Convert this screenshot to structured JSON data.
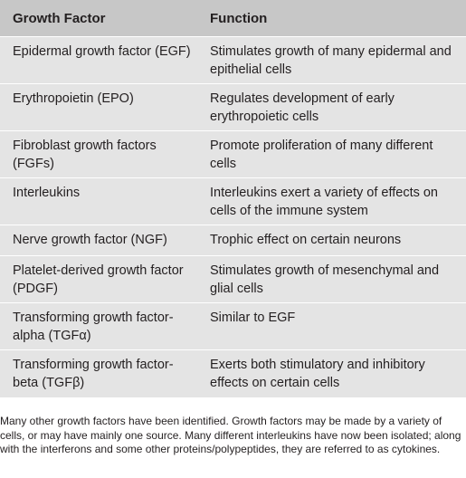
{
  "table": {
    "headers": [
      "Growth Factor",
      "Function"
    ],
    "rows": [
      {
        "factor": "Epidermal growth factor (EGF)",
        "function": "Stimulates growth of many epidermal and epithelial cells"
      },
      {
        "factor": "Erythropoietin (EPO)",
        "function": "Regulates development of early erythropoietic cells"
      },
      {
        "factor": "Fibroblast growth factors (FGFs)",
        "function": "Promote proliferation of many different cells"
      },
      {
        "factor": "Interleukins",
        "function": "Interleukins exert a variety of effects on cells of the immune system"
      },
      {
        "factor": "Nerve growth factor (NGF)",
        "function": "Trophic effect on certain neurons"
      },
      {
        "factor": "Platelet-derived growth factor (PDGF)",
        "function": "Stimulates growth of mesenchymal and glial cells"
      },
      {
        "factor": "Transforming growth factor-alpha (TGFα)",
        "function": "Similar to EGF"
      },
      {
        "factor": "Transforming growth factor-beta (TGFβ)",
        "function": "Exerts both stimulatory and inhibitory effects on certain cells"
      }
    ]
  },
  "footnote": "Many other growth factors have been identified. Growth factors may be made by a variety of cells, or may have mainly one source. Many different interleukins have now been isolated; along with the interferons and some other proteins/polypeptides, they are referred to as cytokines.",
  "colors": {
    "header_bg": "#c7c7c7",
    "body_bg": "#e4e4e4",
    "divider": "#ffffff",
    "text": "#231f20"
  }
}
